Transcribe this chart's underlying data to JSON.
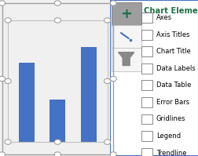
{
  "bar_values": [
    0.65,
    0.35,
    0.78
  ],
  "bar_color": "#4472C4",
  "chart_bg": "#ffffff",
  "outer_bg": "#f0f0f0",
  "selection_border_color": "#a0a0a0",
  "inner_border_color": "#c0c0c0",
  "handle_color": "#ffffff",
  "handle_stroke": "#a0a0a0",
  "panel_bg": "#ffffff",
  "panel_border": "#4472C4",
  "panel_title": "Chart Elements",
  "panel_title_color": "#1e7145",
  "panel_items": [
    "Axes",
    "Axis Titles",
    "Chart Title",
    "Data Labels",
    "Data Table",
    "Error Bars",
    "Gridlines",
    "Legend",
    "Trendline"
  ],
  "btn_plus_bg": "#9e9e9e",
  "btn_plus_border": "#888888",
  "btn_plus_color": "#1e7145",
  "btn_other_bg": "#f5f5f5",
  "btn_other_border": "#c0c0c0",
  "figsize": [
    2.53,
    1.99
  ],
  "dpi": 100
}
